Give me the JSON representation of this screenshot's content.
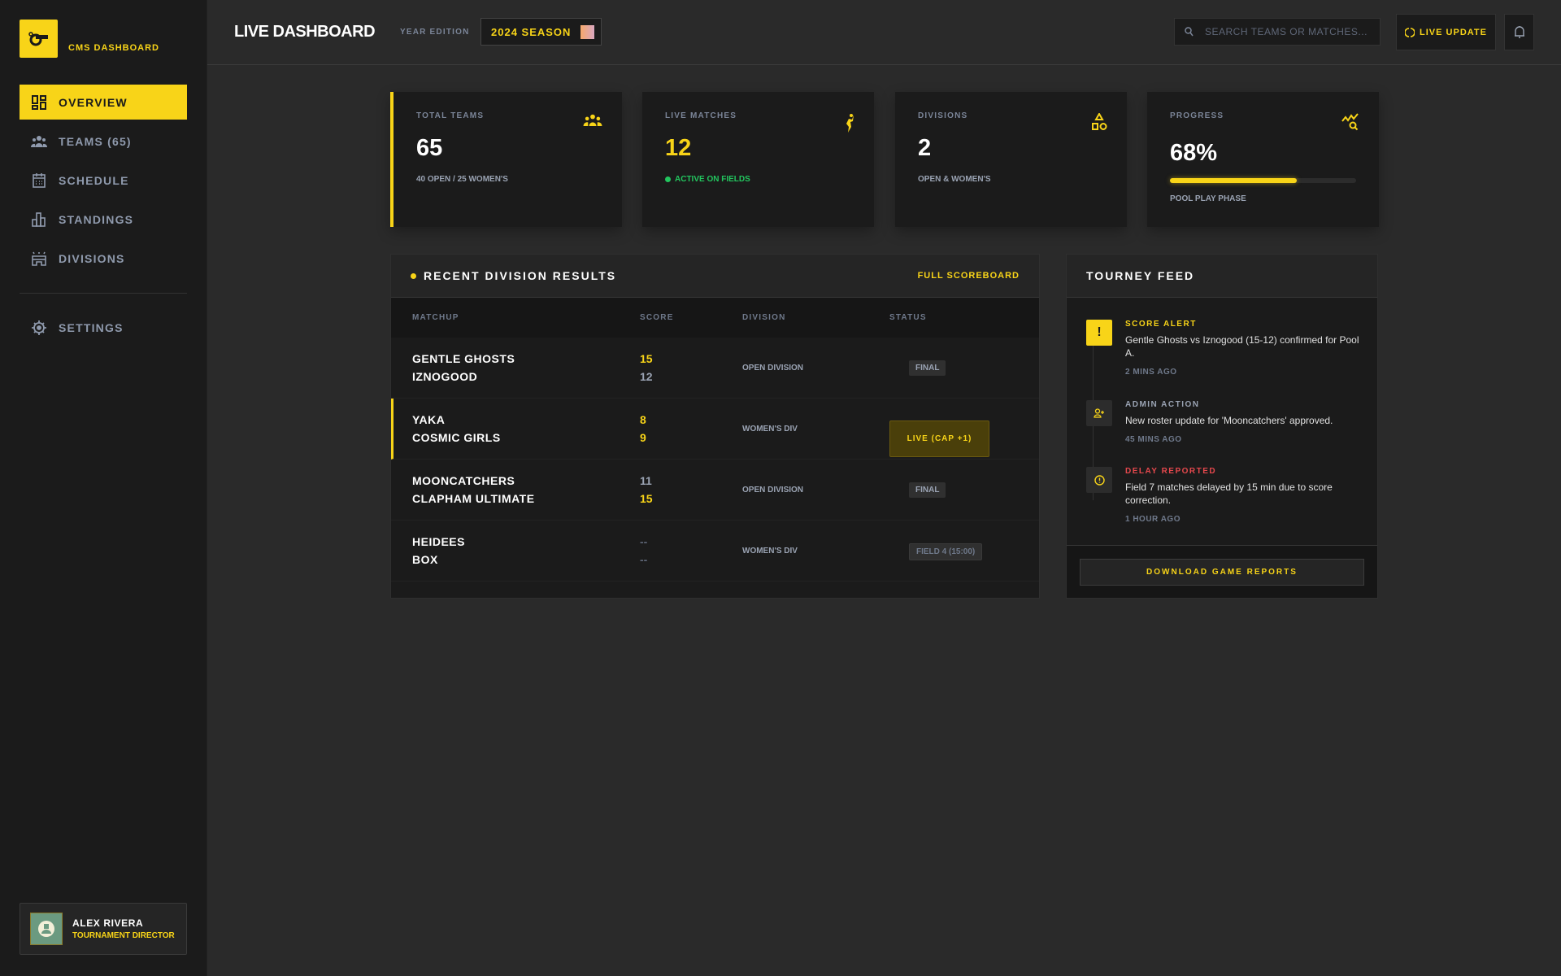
{
  "colors": {
    "accent": "#f8d418",
    "live_green": "#22c55e",
    "alert_red": "#e5484d"
  },
  "sidebar": {
    "brand": "CMS DASHBOARD",
    "logo_icon": "whistle-icon",
    "items": [
      {
        "label": "OVERVIEW",
        "icon": "grid-icon",
        "active": true
      },
      {
        "label": "TEAMS (65)",
        "icon": "users-icon"
      },
      {
        "label": "SCHEDULE",
        "icon": "calendar-icon"
      },
      {
        "label": "STANDINGS",
        "icon": "bar-chart-icon"
      },
      {
        "label": "DIVISIONS",
        "icon": "stadium-icon"
      }
    ],
    "settings": "SETTINGS",
    "user": {
      "name": "ALEX RIVERA",
      "role": "TOURNAMENT DIRECTOR"
    }
  },
  "header": {
    "title": "LIVE DASHBOARD",
    "year_label": "YEAR EDITION",
    "season": "2024 SEASON",
    "search_placeholder": "SEARCH TEAMS OR MATCHES...",
    "live_update": "LIVE UPDATE"
  },
  "stats": [
    {
      "label": "TOTAL TEAMS",
      "value": "65",
      "sub": "40 OPEN / 25 WOMEN'S",
      "icon": "users-icon"
    },
    {
      "label": "LIVE MATCHES",
      "value": "12",
      "sub": "ACTIVE ON FIELDS",
      "icon": "player-icon"
    },
    {
      "label": "DIVISIONS",
      "value": "2",
      "sub": "OPEN & WOMEN'S",
      "icon": "shapes-icon"
    },
    {
      "label": "PROGRESS",
      "value": "68%",
      "sub": "POOL PLAY PHASE",
      "icon": "trend-search-icon",
      "progress": 68
    }
  ],
  "results": {
    "title": "RECENT DIVISION RESULTS",
    "link": "FULL SCOREBOARD",
    "columns": [
      "MATCHUP",
      "SCORE",
      "DIVISION",
      "STATUS"
    ],
    "rows": [
      {
        "team1": "GENTLE GHOSTS",
        "team2": "IZNOGOOD",
        "score1": "15",
        "score2": "12",
        "winner": 1,
        "division": "OPEN DIVISION",
        "status": "FINAL",
        "status_type": "final"
      },
      {
        "team1": "YAKA",
        "team2": "COSMIC GIRLS",
        "score1": "8",
        "score2": "9",
        "winner": 0,
        "live": true,
        "division": "WOMEN'S DIV",
        "status": "LIVE (CAP +1)",
        "status_type": "live"
      },
      {
        "team1": "MOONCATCHERS",
        "team2": "CLAPHAM ULTIMATE",
        "score1": "11",
        "score2": "15",
        "winner": 2,
        "division": "OPEN DIVISION",
        "status": "FINAL",
        "status_type": "final"
      },
      {
        "team1": "HEIDEES",
        "team2": "BOX",
        "score1": "--",
        "score2": "--",
        "winner": -1,
        "division": "WOMEN'S DIV",
        "status": "FIELD 4 (15:00)",
        "status_type": "sched"
      }
    ]
  },
  "feed": {
    "title": "TOURNEY FEED",
    "items": [
      {
        "type": "SCORE ALERT",
        "message": "Gentle Ghosts vs Iznogood (15-12) confirmed for Pool A.",
        "time": "2 MINS AGO",
        "icon": "exclamation-icon"
      },
      {
        "type": "ADMIN ACTION",
        "message": "New roster update for 'Mooncatchers' approved.",
        "time": "45 MINS AGO",
        "icon": "user-plus-icon"
      },
      {
        "type": "DELAY REPORTED",
        "message": "Field 7 matches delayed by 15 min due to score correction.",
        "time": "1 HOUR AGO",
        "icon": "alert-circle-icon"
      }
    ],
    "download": "DOWNLOAD GAME REPORTS"
  }
}
